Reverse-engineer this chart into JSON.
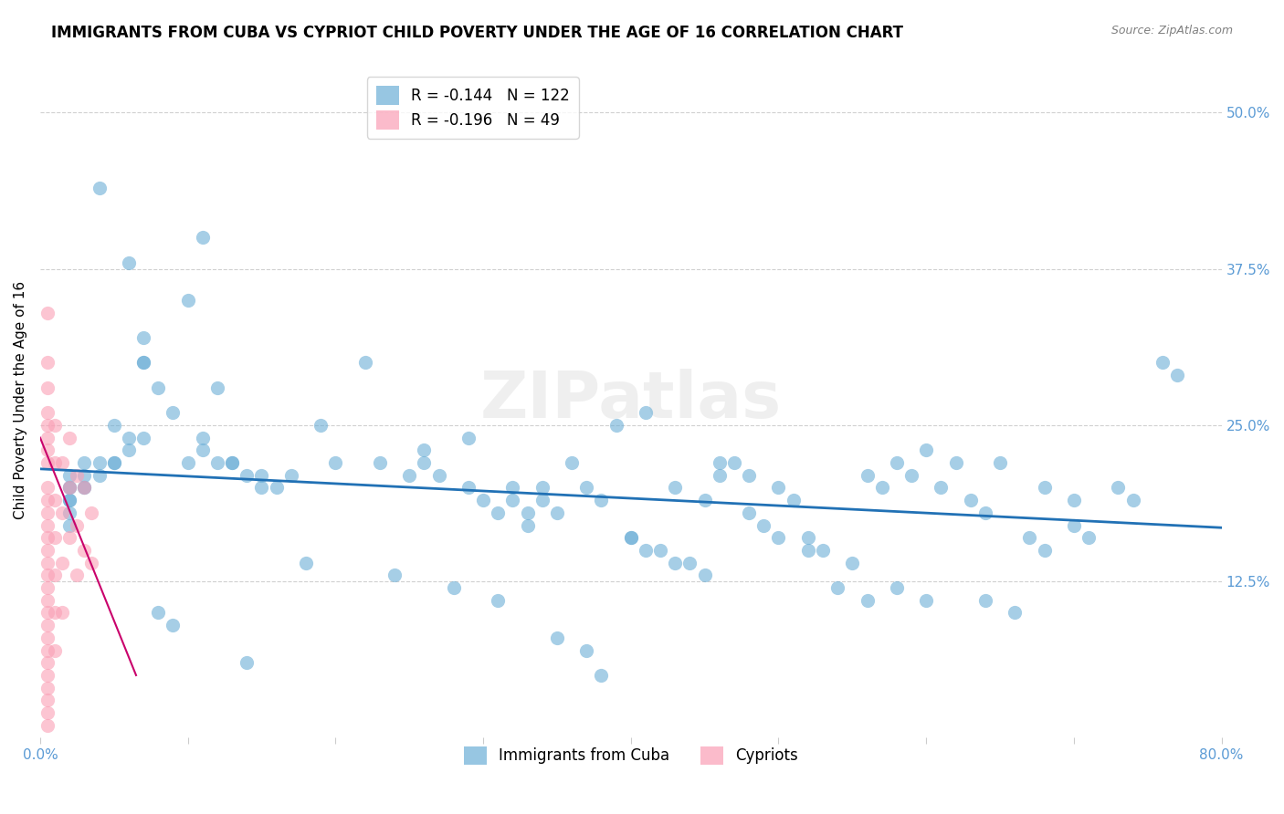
{
  "title": "IMMIGRANTS FROM CUBA VS CYPRIOT CHILD POVERTY UNDER THE AGE OF 16 CORRELATION CHART",
  "source": "Source: ZipAtlas.com",
  "ylabel": "Child Poverty Under the Age of 16",
  "ytick_labels": [
    "50.0%",
    "37.5%",
    "25.0%",
    "12.5%"
  ],
  "ytick_values": [
    0.5,
    0.375,
    0.25,
    0.125
  ],
  "xlim": [
    0.0,
    0.8
  ],
  "ylim": [
    0.0,
    0.54
  ],
  "blue_color": "#6baed6",
  "pink_color": "#fa9fb5",
  "blue_line_color": "#2171b5",
  "pink_line_color": "#c9006b",
  "legend_r_blue": "-0.144",
  "legend_n_blue": "122",
  "legend_r_pink": "-0.196",
  "legend_n_pink": "49",
  "legend_label_blue": "Immigrants from Cuba",
  "legend_label_pink": "Cypriots",
  "watermark": "ZIPatlas",
  "blue_scatter_x": [
    0.04,
    0.07,
    0.1,
    0.07,
    0.07,
    0.05,
    0.04,
    0.04,
    0.03,
    0.03,
    0.02,
    0.02,
    0.02,
    0.02,
    0.02,
    0.02,
    0.02,
    0.03,
    0.03,
    0.05,
    0.06,
    0.06,
    0.05,
    0.07,
    0.08,
    0.09,
    0.11,
    0.1,
    0.12,
    0.13,
    0.14,
    0.15,
    0.15,
    0.13,
    0.11,
    0.11,
    0.12,
    0.17,
    0.16,
    0.19,
    0.2,
    0.22,
    0.23,
    0.25,
    0.26,
    0.26,
    0.27,
    0.29,
    0.29,
    0.3,
    0.31,
    0.32,
    0.32,
    0.33,
    0.33,
    0.34,
    0.34,
    0.35,
    0.36,
    0.37,
    0.38,
    0.39,
    0.41,
    0.4,
    0.42,
    0.44,
    0.43,
    0.45,
    0.46,
    0.47,
    0.48,
    0.49,
    0.5,
    0.51,
    0.52,
    0.53,
    0.55,
    0.56,
    0.57,
    0.58,
    0.59,
    0.6,
    0.61,
    0.63,
    0.64,
    0.65,
    0.67,
    0.68,
    0.7,
    0.71,
    0.73,
    0.74,
    0.76,
    0.77,
    0.06,
    0.08,
    0.09,
    0.14,
    0.18,
    0.24,
    0.28,
    0.31,
    0.35,
    0.37,
    0.38,
    0.4,
    0.41,
    0.43,
    0.45,
    0.46,
    0.48,
    0.5,
    0.52,
    0.54,
    0.56,
    0.58,
    0.6,
    0.62,
    0.64,
    0.66,
    0.68,
    0.7
  ],
  "blue_scatter_y": [
    0.44,
    0.32,
    0.22,
    0.3,
    0.24,
    0.22,
    0.22,
    0.21,
    0.2,
    0.2,
    0.21,
    0.2,
    0.19,
    0.18,
    0.17,
    0.19,
    0.2,
    0.21,
    0.22,
    0.25,
    0.24,
    0.23,
    0.22,
    0.3,
    0.28,
    0.26,
    0.4,
    0.35,
    0.28,
    0.22,
    0.21,
    0.2,
    0.21,
    0.22,
    0.24,
    0.23,
    0.22,
    0.21,
    0.2,
    0.25,
    0.22,
    0.3,
    0.22,
    0.21,
    0.23,
    0.22,
    0.21,
    0.24,
    0.2,
    0.19,
    0.18,
    0.2,
    0.19,
    0.18,
    0.17,
    0.2,
    0.19,
    0.18,
    0.22,
    0.2,
    0.19,
    0.25,
    0.26,
    0.16,
    0.15,
    0.14,
    0.2,
    0.19,
    0.21,
    0.22,
    0.18,
    0.17,
    0.2,
    0.19,
    0.16,
    0.15,
    0.14,
    0.21,
    0.2,
    0.22,
    0.21,
    0.23,
    0.2,
    0.19,
    0.18,
    0.22,
    0.16,
    0.15,
    0.17,
    0.16,
    0.2,
    0.19,
    0.3,
    0.29,
    0.38,
    0.1,
    0.09,
    0.06,
    0.14,
    0.13,
    0.12,
    0.11,
    0.08,
    0.07,
    0.05,
    0.16,
    0.15,
    0.14,
    0.13,
    0.22,
    0.21,
    0.16,
    0.15,
    0.12,
    0.11,
    0.12,
    0.11,
    0.22,
    0.11,
    0.1,
    0.2,
    0.19
  ],
  "pink_scatter_x": [
    0.005,
    0.005,
    0.005,
    0.005,
    0.005,
    0.005,
    0.005,
    0.005,
    0.005,
    0.005,
    0.005,
    0.005,
    0.005,
    0.005,
    0.005,
    0.005,
    0.005,
    0.005,
    0.005,
    0.005,
    0.005,
    0.005,
    0.005,
    0.005,
    0.005,
    0.005,
    0.005,
    0.005,
    0.01,
    0.01,
    0.01,
    0.01,
    0.01,
    0.01,
    0.01,
    0.015,
    0.015,
    0.015,
    0.015,
    0.02,
    0.02,
    0.02,
    0.025,
    0.025,
    0.025,
    0.03,
    0.03,
    0.035,
    0.035
  ],
  "pink_scatter_y": [
    0.34,
    0.3,
    0.28,
    0.26,
    0.25,
    0.24,
    0.23,
    0.22,
    0.2,
    0.18,
    0.16,
    0.14,
    0.12,
    0.1,
    0.08,
    0.06,
    0.04,
    0.02,
    0.01,
    0.19,
    0.17,
    0.15,
    0.13,
    0.11,
    0.09,
    0.07,
    0.05,
    0.03,
    0.25,
    0.22,
    0.19,
    0.16,
    0.13,
    0.1,
    0.07,
    0.22,
    0.18,
    0.14,
    0.1,
    0.24,
    0.2,
    0.16,
    0.21,
    0.17,
    0.13,
    0.2,
    0.15,
    0.18,
    0.14
  ],
  "blue_line_x": [
    0.0,
    0.8
  ],
  "blue_line_y_start": 0.215,
  "blue_line_y_end": 0.168,
  "pink_line_x": [
    0.0,
    0.065
  ],
  "pink_line_y_start": 0.24,
  "pink_line_y_end": 0.05,
  "background_color": "#ffffff",
  "grid_color": "#d0d0d0",
  "tick_color": "#5b9bd5",
  "title_fontsize": 12,
  "axis_label_fontsize": 11,
  "tick_fontsize": 11,
  "legend_fontsize": 12
}
